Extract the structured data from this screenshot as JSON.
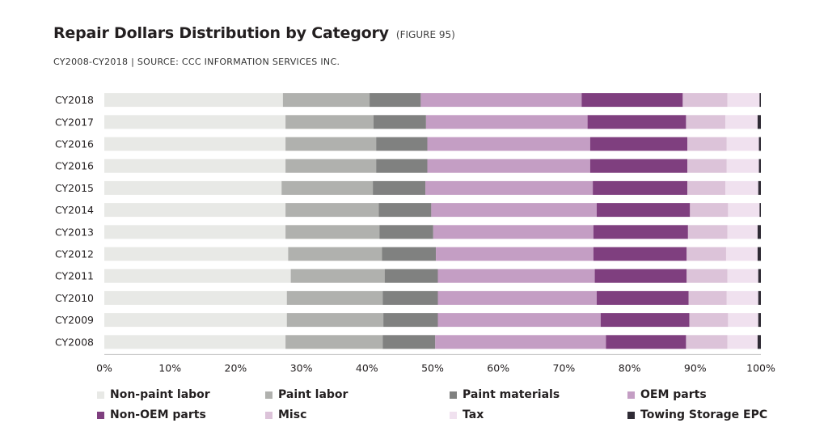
{
  "header": {
    "title": "Repair Dollars Distribution by Category",
    "figure": "(FIGURE 95)",
    "subtitle": "CY2008-CY2018  |  SOURCE: CCC INFORMATION SERVICES INC."
  },
  "chart_data": {
    "type": "bar",
    "orientation": "horizontal",
    "stacked": true,
    "categories": [
      "CY2018",
      "CY2017",
      "CY2016",
      "CY2016",
      "CY2015",
      "CY2014",
      "CY2013",
      "CY2012",
      "CY2011",
      "CY2010",
      "CY2009",
      "CY2008"
    ],
    "x_ticks": [
      "0%",
      "10%",
      "20%",
      "30%",
      "40%",
      "50%",
      "60%",
      "70%",
      "80%",
      "90%",
      "100%"
    ],
    "xlim": [
      0,
      100
    ],
    "grid": false,
    "legend_position": "bottom",
    "series": [
      {
        "name": "Non-paint labor",
        "color": "#e8e9e6",
        "values": [
          27.2,
          27.6,
          27.6,
          27.6,
          27.0,
          27.6,
          27.6,
          28.0,
          28.4,
          27.8,
          27.8,
          27.6
        ]
      },
      {
        "name": "Paint labor",
        "color": "#b0b1ae",
        "values": [
          13.2,
          13.4,
          13.8,
          13.8,
          13.9,
          14.2,
          14.3,
          14.3,
          14.3,
          14.6,
          14.7,
          14.8
        ]
      },
      {
        "name": "Paint materials",
        "color": "#808180",
        "values": [
          7.8,
          8.0,
          7.8,
          7.8,
          8.0,
          8.0,
          8.2,
          8.2,
          8.1,
          8.4,
          8.3,
          8.0
        ]
      },
      {
        "name": "OEM parts",
        "color": "#c49ec4",
        "values": [
          24.5,
          24.6,
          24.8,
          24.8,
          25.5,
          25.2,
          24.4,
          24.0,
          23.9,
          24.2,
          24.8,
          26.0
        ]
      },
      {
        "name": "Non-OEM parts",
        "color": "#7f3f7f",
        "values": [
          15.4,
          15.0,
          14.8,
          14.8,
          14.4,
          14.2,
          14.4,
          14.2,
          14.0,
          14.0,
          13.5,
          12.2
        ]
      },
      {
        "name": "Misc",
        "color": "#dcc3d9",
        "values": [
          6.8,
          6.0,
          6.0,
          6.0,
          5.8,
          5.8,
          6.0,
          6.0,
          6.2,
          5.8,
          5.9,
          6.3
        ]
      },
      {
        "name": "Tax",
        "color": "#f0e1ef",
        "values": [
          4.9,
          4.9,
          4.9,
          4.9,
          5.0,
          4.8,
          4.6,
          4.8,
          4.7,
          4.8,
          4.6,
          4.6
        ]
      },
      {
        "name": "Towing Storage EPC",
        "color": "#2f2b35",
        "values": [
          0.2,
          0.5,
          0.3,
          0.3,
          0.4,
          0.2,
          0.5,
          0.5,
          0.4,
          0.4,
          0.4,
          0.5
        ]
      }
    ]
  }
}
